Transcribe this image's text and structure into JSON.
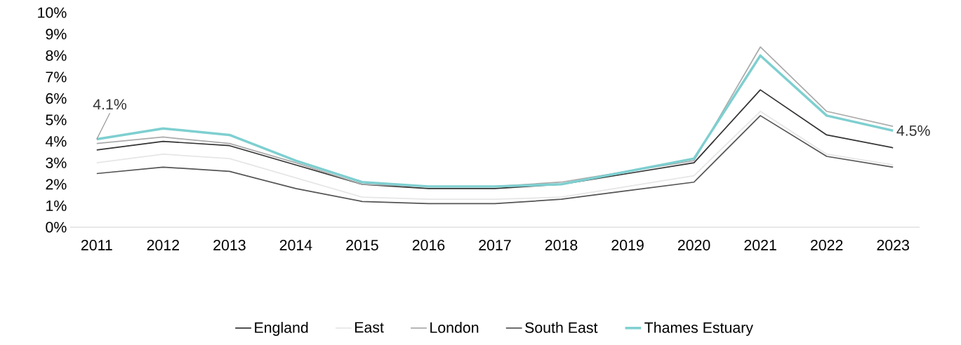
{
  "chart_data": {
    "type": "line",
    "categories": [
      "2011",
      "2012",
      "2013",
      "2014",
      "2015",
      "2016",
      "2017",
      "2018",
      "2019",
      "2020",
      "2021",
      "2022",
      "2023"
    ],
    "series": [
      {
        "name": "England",
        "color": "#333333",
        "values": [
          3.6,
          4.0,
          3.8,
          2.9,
          2.0,
          1.8,
          1.8,
          2.0,
          2.5,
          3.0,
          6.4,
          4.3,
          3.7
        ]
      },
      {
        "name": "East",
        "color": "#e6e6e6",
        "values": [
          3.0,
          3.4,
          3.2,
          2.3,
          1.4,
          1.3,
          1.3,
          1.4,
          1.9,
          2.4,
          5.4,
          3.4,
          2.9
        ]
      },
      {
        "name": "London",
        "color": "#aaaaaa",
        "values": [
          3.9,
          4.2,
          3.9,
          3.0,
          2.0,
          1.9,
          1.9,
          2.1,
          2.6,
          3.1,
          8.4,
          5.4,
          4.7
        ]
      },
      {
        "name": "South East",
        "color": "#555555",
        "values": [
          2.5,
          2.8,
          2.6,
          1.8,
          1.2,
          1.1,
          1.1,
          1.3,
          1.7,
          2.1,
          5.2,
          3.3,
          2.8
        ]
      },
      {
        "name": "Thames Estuary",
        "color": "#7ecfd0",
        "values": [
          4.1,
          4.6,
          4.3,
          3.1,
          2.1,
          1.9,
          1.9,
          2.0,
          2.6,
          3.2,
          8.0,
          5.2,
          4.5
        ]
      }
    ],
    "ylim": [
      0,
      10
    ],
    "yticks": [
      {
        "value": 0,
        "label": "0%"
      },
      {
        "value": 1,
        "label": "1%"
      },
      {
        "value": 2,
        "label": "2%"
      },
      {
        "value": 3,
        "label": "3%"
      },
      {
        "value": 4,
        "label": "4%"
      },
      {
        "value": 5,
        "label": "5%"
      },
      {
        "value": 6,
        "label": "6%"
      },
      {
        "value": 7,
        "label": "7%"
      },
      {
        "value": 8,
        "label": "8%"
      },
      {
        "value": 9,
        "label": "9%"
      },
      {
        "value": 10,
        "label": "10%"
      }
    ],
    "annotations": [
      {
        "text": "4.1%",
        "x": "2011",
        "y": 4.1
      },
      {
        "text": "4.5%",
        "x": "2023",
        "y": 4.5
      }
    ],
    "grid": false,
    "legend": "bottom",
    "marker": "none",
    "line_style": "solid"
  }
}
